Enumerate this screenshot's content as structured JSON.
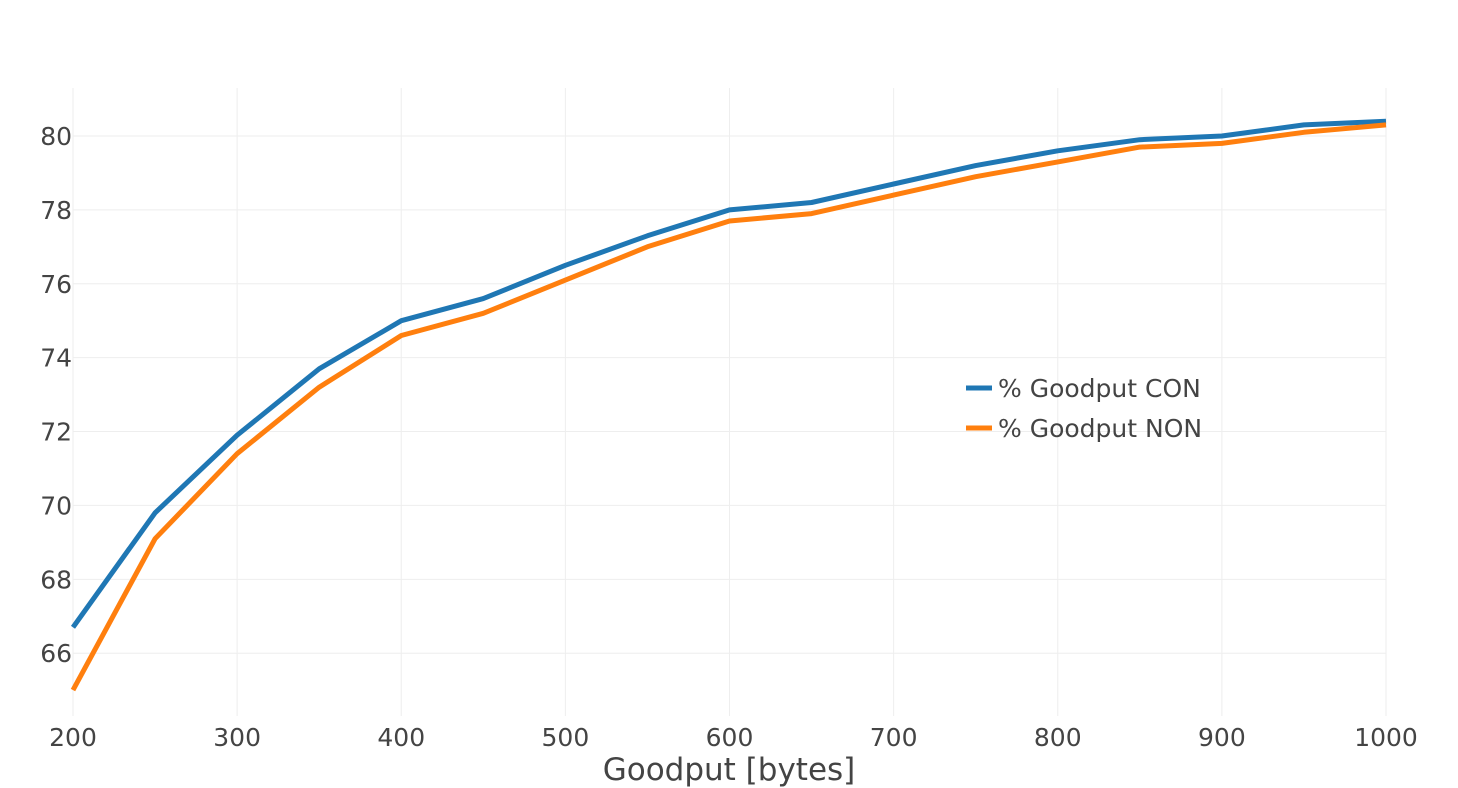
{
  "chart_data": {
    "type": "line",
    "title": "",
    "xlabel": "Goodput [bytes]",
    "ylabel": "",
    "x": [
      200,
      250,
      300,
      350,
      400,
      450,
      500,
      550,
      600,
      650,
      700,
      750,
      800,
      850,
      900,
      950,
      1000
    ],
    "xlim": [
      200,
      1000
    ],
    "ylim": [
      64.3,
      81.3
    ],
    "xticks": [
      200,
      300,
      400,
      500,
      600,
      700,
      800,
      900,
      1000
    ],
    "yticks": [
      66,
      68,
      70,
      72,
      74,
      76,
      78,
      80
    ],
    "grid": true,
    "legend_position": "center-right",
    "series": [
      {
        "name": "% Goodput CON",
        "color": "#1f77b4",
        "values": [
          66.7,
          69.8,
          71.9,
          73.7,
          75.0,
          75.6,
          76.5,
          77.3,
          78.0,
          78.2,
          78.7,
          79.2,
          79.6,
          79.9,
          80.0,
          80.3,
          80.4
        ]
      },
      {
        "name": "% Goodput NON",
        "color": "#ff7f0e",
        "values": [
          65.0,
          69.1,
          71.4,
          73.2,
          74.6,
          75.2,
          76.1,
          77.0,
          77.7,
          77.9,
          78.4,
          78.9,
          79.3,
          79.7,
          79.8,
          80.1,
          80.3
        ]
      }
    ]
  }
}
